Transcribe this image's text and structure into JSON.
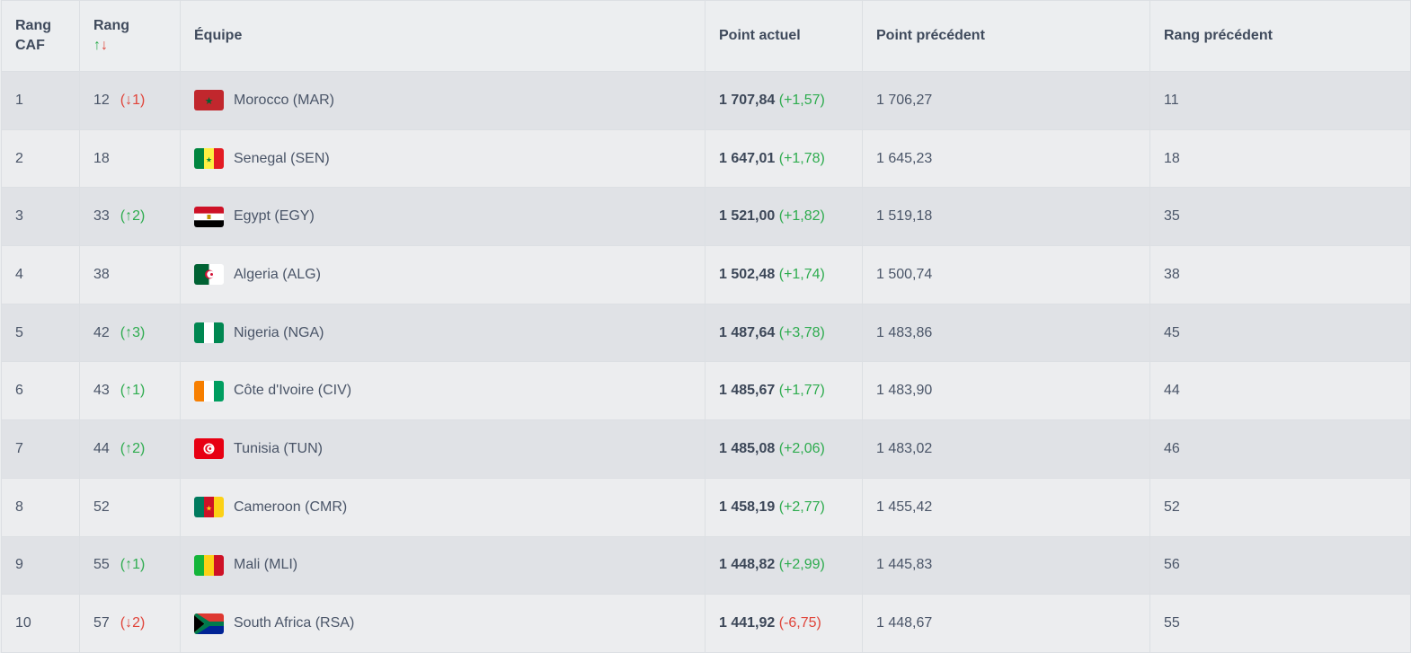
{
  "headers": {
    "rank_caf": [
      "Rang",
      "CAF"
    ],
    "rank": "Rang",
    "rank_arrows": {
      "up": "↑",
      "down": "↓"
    },
    "team": "Équipe",
    "current_points": "Point actuel",
    "previous_points": "Point précédent",
    "previous_rank": "Rang précédent"
  },
  "rows": [
    {
      "caf": "1",
      "rank": "12",
      "move": "(↓1)",
      "move_dir": "down",
      "flag": "morocco-flag",
      "team": "Morocco (MAR)",
      "points": "1 707,84",
      "diff": "(+1,57)",
      "diff_dir": "up",
      "prev_points": "1 706,27",
      "prev_rank": "11"
    },
    {
      "caf": "2",
      "rank": "18",
      "move": "",
      "move_dir": "",
      "flag": "senegal-flag",
      "team": "Senegal (SEN)",
      "points": "1 647,01",
      "diff": "(+1,78)",
      "diff_dir": "up",
      "prev_points": "1 645,23",
      "prev_rank": "18"
    },
    {
      "caf": "3",
      "rank": "33",
      "move": "(↑2)",
      "move_dir": "up",
      "flag": "egypt-flag",
      "team": "Egypt (EGY)",
      "points": "1 521,00",
      "diff": "(+1,82)",
      "diff_dir": "up",
      "prev_points": "1 519,18",
      "prev_rank": "35"
    },
    {
      "caf": "4",
      "rank": "38",
      "move": "",
      "move_dir": "",
      "flag": "algeria-flag",
      "team": "Algeria (ALG)",
      "points": "1 502,48",
      "diff": "(+1,74)",
      "diff_dir": "up",
      "prev_points": "1 500,74",
      "prev_rank": "38"
    },
    {
      "caf": "5",
      "rank": "42",
      "move": "(↑3)",
      "move_dir": "up",
      "flag": "nigeria-flag",
      "team": "Nigeria (NGA)",
      "points": "1 487,64",
      "diff": "(+3,78)",
      "diff_dir": "up",
      "prev_points": "1 483,86",
      "prev_rank": "45"
    },
    {
      "caf": "6",
      "rank": "43",
      "move": "(↑1)",
      "move_dir": "up",
      "flag": "cote-divoire-flag",
      "team": "Côte d'Ivoire (CIV)",
      "points": "1 485,67",
      "diff": "(+1,77)",
      "diff_dir": "up",
      "prev_points": "1 483,90",
      "prev_rank": "44"
    },
    {
      "caf": "7",
      "rank": "44",
      "move": "(↑2)",
      "move_dir": "up",
      "flag": "tunisia-flag",
      "team": "Tunisia (TUN)",
      "points": "1 485,08",
      "diff": "(+2,06)",
      "diff_dir": "up",
      "prev_points": "1 483,02",
      "prev_rank": "46"
    },
    {
      "caf": "8",
      "rank": "52",
      "move": "",
      "move_dir": "",
      "flag": "cameroon-flag",
      "team": "Cameroon (CMR)",
      "points": "1 458,19",
      "diff": "(+2,77)",
      "diff_dir": "up",
      "prev_points": "1 455,42",
      "prev_rank": "52"
    },
    {
      "caf": "9",
      "rank": "55",
      "move": "(↑1)",
      "move_dir": "up",
      "flag": "mali-flag",
      "team": "Mali (MLI)",
      "points": "1 448,82",
      "diff": "(+2,99)",
      "diff_dir": "up",
      "prev_points": "1 445,83",
      "prev_rank": "56"
    },
    {
      "caf": "10",
      "rank": "57",
      "move": "(↓2)",
      "move_dir": "down",
      "flag": "south-africa-flag",
      "team": "South Africa (RSA)",
      "points": "1 441,92",
      "diff": "(-6,75)",
      "diff_dir": "down",
      "prev_points": "1 448,67",
      "prev_rank": "55"
    }
  ],
  "colors": {
    "up": "#2eac4f",
    "down": "#e0443a",
    "row_odd": "#e0e2e6",
    "row_even": "#ecedef",
    "text": "#4a5568"
  }
}
